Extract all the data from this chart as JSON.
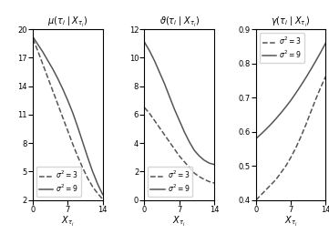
{
  "xlim": [
    0,
    14
  ],
  "xticks": [
    0,
    7,
    14
  ],
  "mu_ylim": [
    2,
    20
  ],
  "mu_yticks": [
    2,
    5,
    8,
    11,
    14,
    17,
    20
  ],
  "mu_title": "$\\mu(\\tau_i \\mid X_{\\tau_i})$",
  "theta_ylim": [
    0,
    12
  ],
  "theta_yticks": [
    0,
    2,
    4,
    6,
    8,
    10,
    12
  ],
  "theta_title": "$\\vartheta(\\tau_i \\mid X_{\\tau_i})$",
  "gamma_ylim": [
    0.4,
    0.9
  ],
  "gamma_yticks": [
    0.4,
    0.5,
    0.6,
    0.7,
    0.8,
    0.9
  ],
  "gamma_title": "$\\gamma(\\tau_i \\mid X_{\\tau_i})$",
  "legend_sigma3": "$\\sigma^2 = 3$",
  "legend_sigma9": "$\\sigma^2 = 9$",
  "line_color": "#555555",
  "mu_sigma3": [
    19.0,
    17.7,
    16.3,
    14.9,
    13.5,
    12.1,
    10.7,
    9.3,
    7.9,
    6.6,
    5.4,
    4.3,
    3.4,
    2.7,
    2.1
  ],
  "mu_sigma9": [
    19.2,
    18.4,
    17.6,
    16.7,
    15.8,
    14.8,
    13.7,
    12.5,
    11.2,
    9.7,
    8.1,
    6.5,
    5.0,
    3.7,
    2.6
  ],
  "theta_sigma3": [
    6.5,
    6.1,
    5.6,
    5.1,
    4.6,
    4.1,
    3.6,
    3.1,
    2.7,
    2.3,
    1.9,
    1.65,
    1.45,
    1.3,
    1.2
  ],
  "theta_sigma9": [
    11.1,
    10.5,
    9.8,
    9.0,
    8.2,
    7.3,
    6.4,
    5.6,
    4.8,
    4.1,
    3.5,
    3.1,
    2.8,
    2.6,
    2.5
  ],
  "gamma_sigma3": [
    0.4,
    0.415,
    0.43,
    0.445,
    0.46,
    0.48,
    0.5,
    0.525,
    0.553,
    0.585,
    0.62,
    0.658,
    0.695,
    0.73,
    0.762
  ],
  "gamma_sigma9": [
    0.58,
    0.593,
    0.607,
    0.622,
    0.638,
    0.655,
    0.673,
    0.692,
    0.713,
    0.735,
    0.758,
    0.782,
    0.807,
    0.833,
    0.86
  ]
}
